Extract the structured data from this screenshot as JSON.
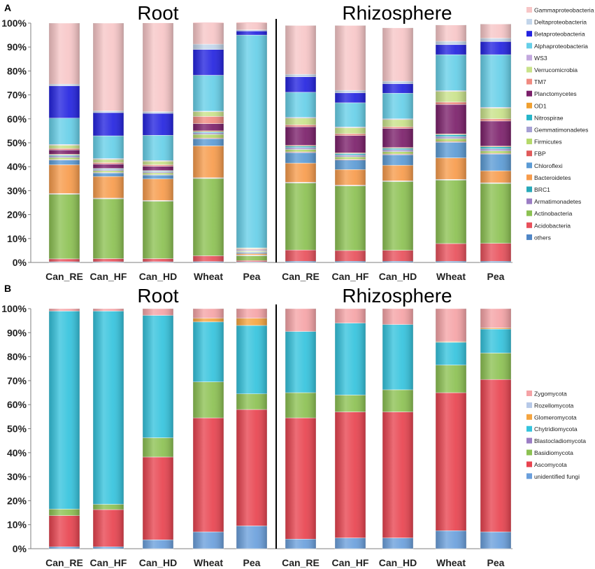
{
  "chart_data": [
    {
      "type": "bar",
      "stacked": true,
      "panel_label": "A",
      "group_titles": [
        "Root",
        "Rhizosphere"
      ],
      "categories": [
        "Can_RE",
        "Can_HF",
        "Can_HD",
        "Wheat",
        "Pea",
        "Can_RE",
        "Can_HF",
        "Can_HD",
        "Wheat",
        "Pea"
      ],
      "ylim": [
        0,
        100
      ],
      "ytick_labels": [
        "0%",
        "10%",
        "20%",
        "30%",
        "40%",
        "50%",
        "60%",
        "70%",
        "80%",
        "90%",
        "100%"
      ],
      "series": [
        {
          "name": "others",
          "color": "#4f86c6",
          "values": [
            0.3,
            0.3,
            0.3,
            0.4,
            0.3,
            0.5,
            0.5,
            0.5,
            0.5,
            0.5
          ]
        },
        {
          "name": "Acidobacteria",
          "color": "#e8505b",
          "values": [
            1.2,
            1.3,
            1.3,
            2.4,
            0.5,
            4.7,
            4.5,
            4.6,
            7.4,
            7.5
          ]
        },
        {
          "name": "Actinobacteria",
          "color": "#8cc152",
          "values": [
            27,
            25,
            24,
            32.3,
            2,
            28,
            27,
            28.7,
            26.5,
            25
          ]
        },
        {
          "name": "Armatimonadetes",
          "color": "#9b7dc4",
          "values": [
            0.2,
            0.2,
            0.2,
            0.2,
            0.2,
            0.2,
            0.2,
            0.2,
            0.2,
            0.2
          ]
        },
        {
          "name": "BRC1",
          "color": "#27a9b9",
          "values": [
            0.1,
            0.1,
            0.1,
            0.1,
            0.1,
            0.1,
            0.1,
            0.1,
            0.1,
            0.1
          ]
        },
        {
          "name": "Bacteroidetes",
          "color": "#f79b4b",
          "values": [
            12,
            9,
            9,
            13.3,
            0.6,
            8,
            6.5,
            6.5,
            9,
            5
          ]
        },
        {
          "name": "Chloroflexi",
          "color": "#5b9bd5",
          "values": [
            2,
            1.5,
            1.6,
            3,
            0.5,
            4.4,
            4,
            4.4,
            6.5,
            7
          ]
        },
        {
          "name": "FBP",
          "color": "#e05a5a",
          "values": [
            0.2,
            0.2,
            0.2,
            0.3,
            0.1,
            0.3,
            0.3,
            0.3,
            0.3,
            0.3
          ]
        },
        {
          "name": "Firmicutes",
          "color": "#b5d96a",
          "values": [
            0.8,
            0.7,
            0.7,
            1.5,
            0.3,
            1,
            1,
            1,
            1.2,
            1
          ]
        },
        {
          "name": "Gemmatimonadetes",
          "color": "#a6a0d4",
          "values": [
            0.7,
            0.5,
            0.5,
            0.7,
            0.2,
            0.8,
            0.8,
            0.8,
            0.9,
            0.9
          ]
        },
        {
          "name": "Nitrospirae",
          "color": "#26b5c9",
          "values": [
            0.4,
            0.3,
            0.3,
            0.4,
            0.2,
            0.6,
            0.6,
            0.6,
            0.8,
            0.8
          ]
        },
        {
          "name": "OD1",
          "color": "#f0a030",
          "values": [
            0.3,
            0.2,
            0.2,
            0.4,
            0.1,
            0.3,
            0.3,
            0.3,
            0.3,
            0.3
          ]
        },
        {
          "name": "Planctomycetes",
          "color": "#7b1f6a",
          "values": [
            1.8,
            1.8,
            1.8,
            3,
            0.3,
            7.8,
            7.2,
            8,
            12.3,
            10.5
          ]
        },
        {
          "name": "TM7",
          "color": "#f08a80",
          "values": [
            0.6,
            0.6,
            0.6,
            3,
            0.3,
            0.8,
            0.8,
            0.7,
            1,
            0.9
          ]
        },
        {
          "name": "Verrucomicrobia",
          "color": "#c9e28a",
          "values": [
            1.4,
            1.4,
            1.5,
            2,
            0.3,
            2.8,
            2.5,
            3,
            4.5,
            4.5
          ]
        },
        {
          "name": "WS3",
          "color": "#c3a8de",
          "values": [
            0.3,
            0.3,
            0.3,
            0.2,
            0.1,
            0.3,
            0.3,
            0.3,
            0.3,
            0.3
          ]
        },
        {
          "name": "Alphaproteobacteria",
          "color": "#66cfe8",
          "values": [
            11,
            9.5,
            10.5,
            15,
            88.9,
            10.5,
            10.1,
            10.7,
            15,
            22
          ]
        },
        {
          "name": "Betaproteobacteria",
          "color": "#2323e0",
          "values": [
            13.5,
            9.7,
            9.2,
            10.8,
            1.7,
            6.5,
            4.2,
            4,
            4.2,
            5.5
          ]
        },
        {
          "name": "Deltaproteobacteria",
          "color": "#c2d5ea",
          "values": [
            0.7,
            0.7,
            0.7,
            2.2,
            0.5,
            1,
            1,
            1,
            1.4,
            1.4
          ]
        },
        {
          "name": "Gammaproteobacteria",
          "color": "#f7c6c7",
          "values": [
            25.5,
            36.7,
            37.1,
            9.1,
            3.2,
            20.4,
            27.1,
            22.3,
            6.8,
            5.9
          ]
        }
      ]
    },
    {
      "type": "bar",
      "stacked": true,
      "panel_label": "B",
      "group_titles": [
        "Root",
        "Rhizosphere"
      ],
      "categories": [
        "Can_RE",
        "Can_HF",
        "Can_HD",
        "Wheat",
        "Pea",
        "Can_RE",
        "Can_HF",
        "Can_HD",
        "Wheat",
        "Pea"
      ],
      "ylim": [
        0,
        100
      ],
      "ytick_labels": [
        "0%",
        "10%",
        "20%",
        "30%",
        "40%",
        "50%",
        "60%",
        "70%",
        "80%",
        "90%",
        "100%"
      ],
      "series": [
        {
          "name": "unidentified fungi",
          "color": "#6a9fdc",
          "values": [
            0.8,
            0.8,
            3.7,
            7,
            9.5,
            4,
            4.5,
            4.5,
            7.5,
            7
          ]
        },
        {
          "name": "Ascomycota",
          "color": "#e8434f",
          "values": [
            13,
            15.5,
            34.5,
            47.5,
            48.5,
            50.5,
            52.5,
            52.5,
            57.5,
            63.5
          ]
        },
        {
          "name": "Basidiomycota",
          "color": "#8cc152",
          "values": [
            2.7,
            2.2,
            8,
            15,
            6.5,
            10.5,
            7,
            9.2,
            11.5,
            11
          ]
        },
        {
          "name": "Blastocladiomycota",
          "color": "#9b7dc4",
          "values": [
            0,
            0,
            0,
            0,
            0,
            0,
            0,
            0,
            0,
            0
          ]
        },
        {
          "name": "Chytridiomycota",
          "color": "#34c3dd",
          "values": [
            82.5,
            80.5,
            51,
            25,
            28.5,
            25.5,
            30,
            27.2,
            9.5,
            10
          ]
        },
        {
          "name": "Glomeromycota",
          "color": "#f5a540",
          "values": [
            0,
            0,
            0,
            1.5,
            3,
            0,
            0,
            0,
            0.3,
            0.5
          ]
        },
        {
          "name": "Rozellomycota",
          "color": "#b7c9e8",
          "values": [
            0,
            0,
            0,
            0,
            0,
            0,
            0,
            0,
            0,
            0
          ]
        },
        {
          "name": "Zygomycota",
          "color": "#f5a3a6",
          "values": [
            1,
            1,
            2.8,
            4,
            4,
            9.5,
            6,
            6.6,
            13.7,
            8
          ]
        }
      ]
    }
  ]
}
